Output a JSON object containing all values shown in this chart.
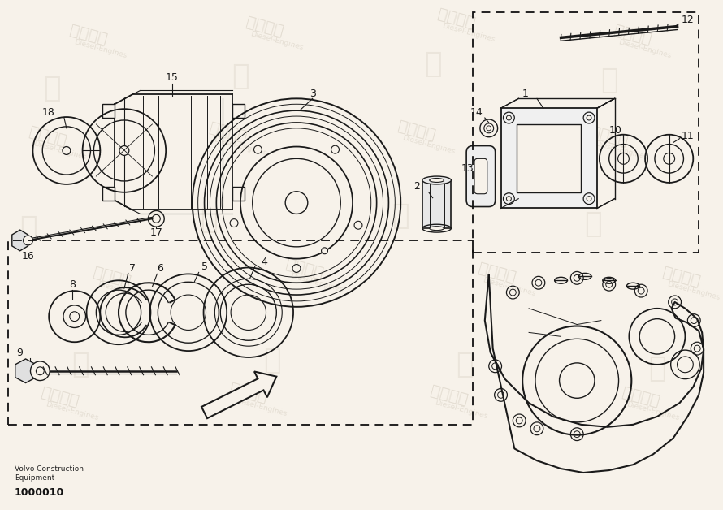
{
  "background_color": "#f7f2ea",
  "line_color": "#1a1a1a",
  "bottom_left_text1": "Volvo Construction",
  "bottom_left_text2": "Equipment",
  "bottom_left_number": "1000010",
  "figsize": [
    8.9,
    6.28
  ],
  "dpi": 100
}
